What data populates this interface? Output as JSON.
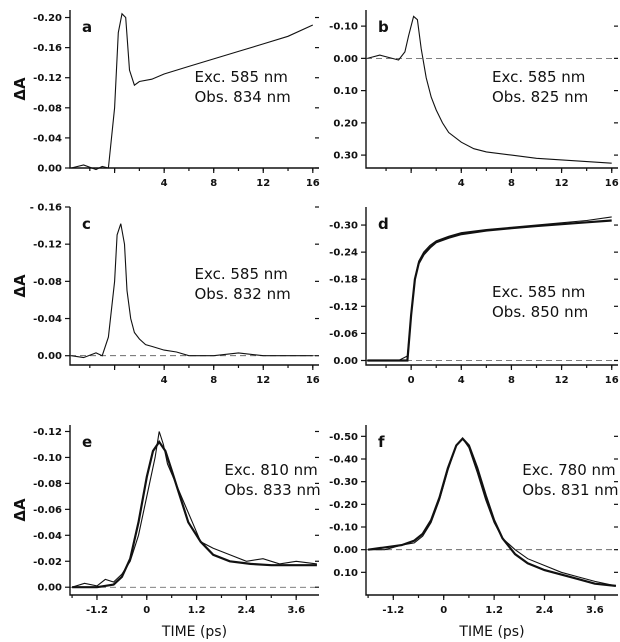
{
  "figure": {
    "x_axis_label": "TIME (ps)",
    "y_axis_label": "ΔA"
  },
  "chart_data": [
    {
      "type": "line",
      "panel": "a",
      "exc": "Exc. 585 nm",
      "obs": "Obs. 834 nm",
      "xlim": [
        -3.6,
        16.5
      ],
      "ylim": [
        0.0,
        -0.21
      ],
      "xticks": [
        "",
        "4",
        "8",
        "12",
        "16"
      ],
      "xtick_values": [
        0,
        4,
        8,
        12,
        16
      ],
      "yticks": [
        "0.00",
        "-0.04",
        "-0.08",
        "-0.12",
        "-0.16",
        "-0.20"
      ],
      "ytick_values": [
        0,
        -0.04,
        -0.08,
        -0.12,
        -0.16,
        -0.2
      ],
      "show_ylabel": true,
      "show_xlabel": false,
      "trace": {
        "x": [
          -3.5,
          -2.5,
          -1.5,
          -1.0,
          -0.5,
          0.0,
          0.3,
          0.6,
          0.9,
          1.2,
          1.6,
          2.0,
          3.0,
          4.0,
          6.0,
          8.0,
          10.0,
          12.0,
          14.0,
          16.0
        ],
        "y": [
          0.0,
          -0.004,
          0.002,
          -0.002,
          0.0,
          -0.08,
          -0.18,
          -0.205,
          -0.2,
          -0.13,
          -0.11,
          -0.115,
          -0.118,
          -0.125,
          -0.135,
          -0.145,
          -0.155,
          -0.165,
          -0.175,
          -0.19
        ]
      },
      "fit": null
    },
    {
      "type": "line",
      "panel": "b",
      "exc": "Exc. 585 nm",
      "obs": "Obs. 825 nm",
      "xlim": [
        -3.6,
        16.5
      ],
      "ylim": [
        0.34,
        -0.15
      ],
      "xticks": [
        "",
        "4",
        "8",
        "12",
        "16"
      ],
      "xtick_values": [
        0,
        4,
        8,
        12,
        16
      ],
      "yticks": [
        "-0.10",
        "0.00",
        "0.10",
        "0.20",
        "0.30"
      ],
      "ytick_values": [
        -0.1,
        0,
        0.1,
        0.2,
        0.3
      ],
      "show_ylabel": false,
      "show_xlabel": false,
      "trace": {
        "x": [
          -3.5,
          -2.5,
          -1.5,
          -1.0,
          -0.5,
          -0.2,
          0.2,
          0.5,
          0.8,
          1.2,
          1.6,
          2.0,
          2.5,
          3.0,
          4.0,
          5.0,
          6.0,
          8.0,
          10.0,
          12.0,
          14.0,
          16.0
        ],
        "y": [
          0.0,
          -0.01,
          0.0,
          0.005,
          -0.02,
          -0.07,
          -0.13,
          -0.12,
          -0.03,
          0.06,
          0.12,
          0.16,
          0.2,
          0.23,
          0.26,
          0.28,
          0.29,
          0.3,
          0.31,
          0.315,
          0.32,
          0.325
        ]
      },
      "fit": null
    },
    {
      "type": "line",
      "panel": "c",
      "exc": "Exc. 585 nm",
      "obs": "Obs. 832 nm",
      "xlim": [
        -3.6,
        16.5
      ],
      "ylim": [
        0.01,
        -0.16
      ],
      "xticks": [
        "",
        "4",
        "8",
        "12",
        "16"
      ],
      "xtick_values": [
        0,
        4,
        8,
        12,
        16
      ],
      "yticks": [
        "0.00",
        "-0.04",
        "-0.08",
        "-0.12",
        "- 0.16"
      ],
      "ytick_values": [
        0,
        -0.04,
        -0.08,
        -0.12,
        -0.16
      ],
      "show_ylabel": true,
      "show_xlabel": false,
      "trace": {
        "x": [
          -3.5,
          -2.5,
          -1.5,
          -1.0,
          -0.5,
          0.0,
          0.2,
          0.5,
          0.8,
          1.0,
          1.3,
          1.6,
          2.0,
          2.5,
          3.0,
          4.0,
          5.0,
          6.0,
          8.0,
          10.0,
          12.0,
          14.0,
          16.0
        ],
        "y": [
          0.0,
          0.002,
          -0.003,
          0.0,
          -0.02,
          -0.08,
          -0.13,
          -0.142,
          -0.12,
          -0.07,
          -0.04,
          -0.025,
          -0.018,
          -0.012,
          -0.01,
          -0.006,
          -0.004,
          0.0,
          0.0,
          -0.003,
          0.0,
          0.0,
          0.0
        ]
      },
      "fit": null
    },
    {
      "type": "line",
      "panel": "d",
      "exc": "Exc. 585 nm",
      "obs": "Obs. 850 nm",
      "xlim": [
        -3.6,
        16.5
      ],
      "ylim": [
        0.01,
        -0.34
      ],
      "xticks": [
        "",
        "0",
        "4",
        "8",
        "12",
        "16"
      ],
      "xtick_values": [
        -4,
        0,
        4,
        8,
        12,
        16
      ],
      "yticks": [
        "0.00",
        "-0.06",
        "-0.12",
        "-0.18",
        "-0.24",
        "-0.30"
      ],
      "ytick_values": [
        0,
        -0.06,
        -0.12,
        -0.18,
        -0.24,
        -0.3
      ],
      "show_ylabel": false,
      "show_xlabel": false,
      "trace": {
        "x": [
          -3.5,
          -2.0,
          -1.0,
          -0.3,
          0.0,
          0.3,
          0.6,
          1.0,
          1.5,
          2.0,
          3.0,
          4.0,
          6.0,
          8.0,
          10.0,
          12.0,
          14.0,
          16.0
        ],
        "y": [
          0.0,
          0.0,
          0.0,
          -0.01,
          -0.1,
          -0.18,
          -0.22,
          -0.24,
          -0.255,
          -0.265,
          -0.275,
          -0.283,
          -0.29,
          -0.295,
          -0.3,
          -0.305,
          -0.31,
          -0.318
        ]
      },
      "fit": {
        "x": [
          -3.5,
          -0.3,
          0.0,
          0.3,
          0.6,
          1.0,
          1.5,
          2.0,
          3.0,
          4.0,
          6.0,
          8.0,
          10.0,
          12.0,
          14.0,
          16.0
        ],
        "y": [
          0.0,
          0.0,
          -0.1,
          -0.18,
          -0.215,
          -0.235,
          -0.25,
          -0.262,
          -0.272,
          -0.28,
          -0.288,
          -0.293,
          -0.298,
          -0.302,
          -0.306,
          -0.31
        ]
      }
    },
    {
      "type": "line",
      "panel": "e",
      "exc": "Exc. 810 nm",
      "obs": "Obs. 833 nm",
      "xlim": [
        -1.85,
        4.15
      ],
      "ylim": [
        0.006,
        -0.125
      ],
      "xticks": [
        "-1.2",
        "0",
        "1.2",
        "2.4",
        "3.6"
      ],
      "xtick_values": [
        -1.2,
        0,
        1.2,
        2.4,
        3.6
      ],
      "yticks": [
        "0.00",
        "-0.02",
        "-0.04",
        "-0.06",
        "-0.08",
        "-0.10",
        "-0.12"
      ],
      "ytick_values": [
        0,
        -0.02,
        -0.04,
        -0.06,
        -0.08,
        -0.1,
        -0.12
      ],
      "show_ylabel": true,
      "show_xlabel": true,
      "trace": {
        "x": [
          -1.8,
          -1.5,
          -1.2,
          -1.0,
          -0.8,
          -0.6,
          -0.4,
          -0.2,
          0.0,
          0.2,
          0.3,
          0.4,
          0.5,
          0.7,
          0.9,
          1.1,
          1.3,
          1.6,
          2.0,
          2.4,
          2.8,
          3.2,
          3.6,
          4.1
        ],
        "y": [
          0.0,
          -0.003,
          -0.001,
          -0.006,
          -0.004,
          -0.01,
          -0.02,
          -0.04,
          -0.07,
          -0.1,
          -0.12,
          -0.11,
          -0.095,
          -0.08,
          -0.065,
          -0.05,
          -0.035,
          -0.03,
          -0.025,
          -0.02,
          -0.022,
          -0.018,
          -0.02,
          -0.018
        ]
      },
      "fit": {
        "x": [
          -1.8,
          -1.2,
          -0.8,
          -0.6,
          -0.4,
          -0.2,
          0.0,
          0.15,
          0.3,
          0.45,
          0.6,
          0.8,
          1.0,
          1.3,
          1.6,
          2.0,
          2.5,
          3.0,
          3.6,
          4.1
        ],
        "y": [
          0.0,
          0.0,
          -0.002,
          -0.008,
          -0.022,
          -0.05,
          -0.085,
          -0.105,
          -0.112,
          -0.105,
          -0.09,
          -0.07,
          -0.05,
          -0.035,
          -0.025,
          -0.02,
          -0.018,
          -0.017,
          -0.017,
          -0.017
        ]
      }
    },
    {
      "type": "line",
      "panel": "f",
      "exc": "Exc. 780 nm",
      "obs": "Obs. 831 nm",
      "xlim": [
        -1.85,
        4.15
      ],
      "ylim": [
        0.2,
        -0.55
      ],
      "xticks": [
        "-1.2",
        "0",
        "1.2",
        "2.4",
        "3.6"
      ],
      "xtick_values": [
        -1.2,
        0,
        1.2,
        2.4,
        3.6
      ],
      "yticks": [
        "0.10",
        "0.00",
        "-0.10",
        "-0.20",
        "-0.30",
        "-0.40",
        "-0.50"
      ],
      "ytick_values": [
        0.1,
        0,
        -0.1,
        -0.2,
        -0.3,
        -0.4,
        -0.5
      ],
      "show_ylabel": false,
      "show_xlabel": true,
      "trace": {
        "x": [
          -1.8,
          -1.4,
          -1.0,
          -0.7,
          -0.5,
          -0.3,
          -0.1,
          0.1,
          0.3,
          0.45,
          0.6,
          0.8,
          1.0,
          1.2,
          1.4,
          1.7,
          2.0,
          2.4,
          2.8,
          3.2,
          3.6,
          4.1
        ],
        "y": [
          0.0,
          0.0,
          -0.02,
          -0.03,
          -0.06,
          -0.12,
          -0.22,
          -0.35,
          -0.46,
          -0.49,
          -0.45,
          -0.34,
          -0.22,
          -0.12,
          -0.05,
          0.0,
          0.04,
          0.07,
          0.1,
          0.12,
          0.14,
          0.16
        ]
      },
      "fit": {
        "x": [
          -1.8,
          -1.0,
          -0.7,
          -0.5,
          -0.3,
          -0.1,
          0.1,
          0.3,
          0.45,
          0.6,
          0.8,
          1.0,
          1.2,
          1.4,
          1.7,
          2.0,
          2.4,
          2.8,
          3.2,
          3.6,
          4.1
        ],
        "y": [
          0.0,
          -0.02,
          -0.04,
          -0.07,
          -0.13,
          -0.23,
          -0.36,
          -0.46,
          -0.49,
          -0.46,
          -0.36,
          -0.24,
          -0.13,
          -0.05,
          0.02,
          0.06,
          0.09,
          0.11,
          0.13,
          0.15,
          0.16
        ]
      }
    }
  ]
}
